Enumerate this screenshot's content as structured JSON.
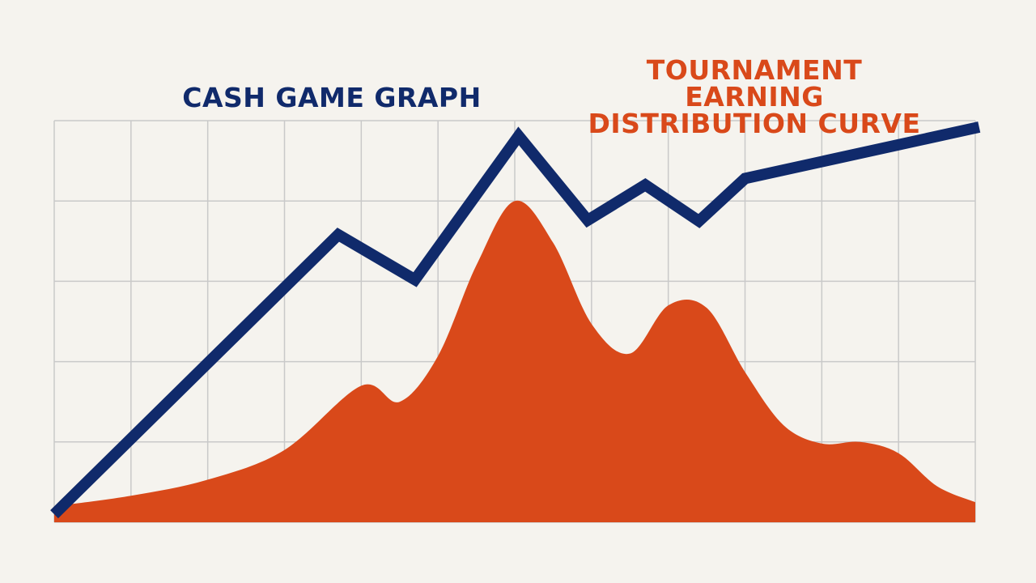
{
  "chart_data": {
    "type": "line",
    "xlim": [
      0,
      12
    ],
    "ylim": [
      0,
      5
    ],
    "xticks": [
      0,
      1,
      2,
      3,
      4,
      5,
      6,
      7,
      8,
      9,
      10,
      11,
      12
    ],
    "yticks": [
      0,
      1,
      2,
      3,
      4,
      5
    ],
    "grid": true,
    "series": [
      {
        "name": "TOURNAMENT EARNING DISTRIBUTION CURVE",
        "type": "area",
        "color": "#d9491a",
        "x": [
          0,
          1,
          2,
          3,
          4,
          4.5,
          5,
          5.5,
          6,
          6.5,
          7,
          7.5,
          8,
          8.5,
          9,
          9.5,
          10,
          10.5,
          11,
          11.5,
          12
        ],
        "values": [
          0.2,
          0.33,
          0.53,
          0.9,
          1.7,
          1.5,
          2.07,
          3.2,
          4.0,
          3.48,
          2.47,
          2.1,
          2.7,
          2.67,
          1.87,
          1.21,
          0.98,
          1.0,
          0.86,
          0.45,
          0.25
        ]
      },
      {
        "name": "CASH GAME GRAPH",
        "type": "line",
        "color": "#102a6b",
        "x": [
          0,
          3.7,
          4.7,
          6.05,
          6.95,
          7.7,
          8.4,
          9.0,
          12.05
        ],
        "values": [
          0.1,
          3.58,
          3.02,
          4.81,
          3.76,
          4.2,
          3.75,
          4.28,
          4.92
        ]
      }
    ]
  }
}
